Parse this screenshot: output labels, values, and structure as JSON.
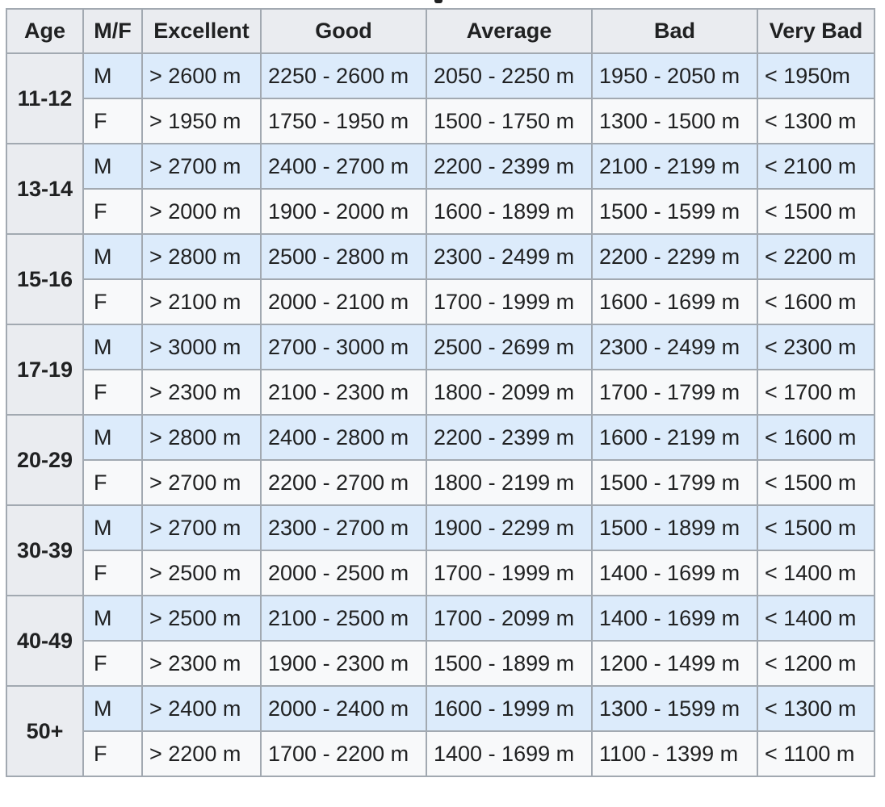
{
  "columns": [
    "Age",
    "M/F",
    "Excellent",
    "Good",
    "Average",
    "Bad",
    "Very Bad"
  ],
  "groups": [
    {
      "age": "11-12",
      "rows": [
        {
          "sex": "M",
          "values": [
            "> 2600 m",
            "2250 - 2600 m",
            "2050 - 2250 m",
            "1950 - 2050 m",
            "< 1950m"
          ]
        },
        {
          "sex": "F",
          "values": [
            "> 1950 m",
            "1750 - 1950 m",
            "1500 - 1750 m",
            "1300 - 1500 m",
            "< 1300 m"
          ]
        }
      ]
    },
    {
      "age": "13-14",
      "rows": [
        {
          "sex": "M",
          "values": [
            "> 2700 m",
            "2400 - 2700 m",
            "2200 - 2399 m",
            "2100 - 2199 m",
            "< 2100 m"
          ]
        },
        {
          "sex": "F",
          "values": [
            "> 2000 m",
            "1900 - 2000 m",
            "1600 - 1899 m",
            "1500 - 1599 m",
            "< 1500 m"
          ]
        }
      ]
    },
    {
      "age": "15-16",
      "rows": [
        {
          "sex": "M",
          "values": [
            "> 2800 m",
            "2500 - 2800 m",
            "2300 - 2499 m",
            "2200 - 2299 m",
            "< 2200 m"
          ]
        },
        {
          "sex": "F",
          "values": [
            "> 2100 m",
            "2000 - 2100 m",
            "1700 - 1999 m",
            "1600 - 1699 m",
            "< 1600 m"
          ]
        }
      ]
    },
    {
      "age": "17-19",
      "rows": [
        {
          "sex": "M",
          "values": [
            "> 3000 m",
            "2700 - 3000 m",
            "2500 - 2699 m",
            "2300 - 2499 m",
            "< 2300 m"
          ]
        },
        {
          "sex": "F",
          "values": [
            "> 2300 m",
            "2100 - 2300 m",
            "1800 - 2099 m",
            "1700 - 1799 m",
            "< 1700 m"
          ]
        }
      ]
    },
    {
      "age": "20-29",
      "rows": [
        {
          "sex": "M",
          "values": [
            "> 2800 m",
            "2400 - 2800 m",
            "2200 - 2399 m",
            "1600 - 2199 m",
            "< 1600 m"
          ]
        },
        {
          "sex": "F",
          "values": [
            "> 2700 m",
            "2200 - 2700 m",
            "1800 - 2199 m",
            "1500 - 1799 m",
            "< 1500 m"
          ]
        }
      ]
    },
    {
      "age": "30-39",
      "rows": [
        {
          "sex": "M",
          "values": [
            "> 2700 m",
            "2300 - 2700 m",
            "1900 - 2299 m",
            "1500 - 1899 m",
            "< 1500 m"
          ]
        },
        {
          "sex": "F",
          "values": [
            "> 2500 m",
            "2000 - 2500 m",
            "1700 - 1999 m",
            "1400 - 1699 m",
            "< 1400 m"
          ]
        }
      ]
    },
    {
      "age": "40-49",
      "rows": [
        {
          "sex": "M",
          "values": [
            "> 2500 m",
            "2100 - 2500 m",
            "1700 - 2099 m",
            "1400 - 1699 m",
            "< 1400 m"
          ]
        },
        {
          "sex": "F",
          "values": [
            "> 2300 m",
            "1900 - 2300 m",
            "1500 - 1899 m",
            "1200 - 1499 m",
            "< 1200 m"
          ]
        }
      ]
    },
    {
      "age": "50+",
      "rows": [
        {
          "sex": "M",
          "values": [
            "> 2400 m",
            "2000 - 2400 m",
            "1600 - 1999 m",
            "1300 - 1599 m",
            "< 1300 m"
          ]
        },
        {
          "sex": "F",
          "values": [
            "> 2200 m",
            "1700 - 2200 m",
            "1400 - 1699 m",
            "1100 - 1399 m",
            "< 1100 m"
          ]
        }
      ]
    }
  ],
  "colors": {
    "header_bg": "#eaecf0",
    "male_row_bg": "#dcebfb",
    "female_row_bg": "#f8f9fa",
    "border": "#a2a9b1",
    "text": "#202122"
  }
}
